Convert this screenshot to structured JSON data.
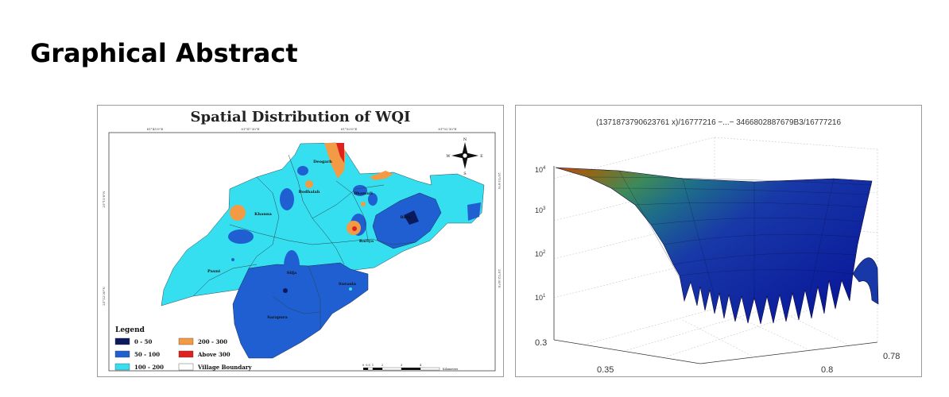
{
  "page": {
    "heading": "Graphical Abstract"
  },
  "map": {
    "title": "Spatial Distribution of WQI",
    "top_ticks": [
      "81°45'0\"E",
      "81°47'30\"E",
      "81°50'0\"E",
      "81°52'30\"E"
    ],
    "left_ticks": [
      "25°15'0\"N",
      "25°12'30\"N"
    ],
    "right_ticks": [
      "25°15'0\"N",
      "25°12'30\"N"
    ],
    "villages": [
      "Deogarh",
      "Bodhalah",
      "Bhamuli",
      "Bara",
      "Khanna",
      "Rariya",
      "Pauni",
      "Silja",
      "Suraula",
      "Sarapura"
    ],
    "north_arrow": {
      "n": "N",
      "s": "S",
      "e": "E",
      "w": "W"
    },
    "legend": {
      "title": "Legend",
      "items": [
        {
          "label": "0 - 50",
          "color": "#0a1a5e"
        },
        {
          "label": "50 - 100",
          "color": "#1f5fd1"
        },
        {
          "label": "100 - 200",
          "color": "#35dff0"
        },
        {
          "label": "200 - 300",
          "color": "#f39a44"
        },
        {
          "label": "Above 300",
          "color": "#e01f1f"
        },
        {
          "label": "Village Boundary",
          "color": "#ffffff"
        }
      ]
    },
    "scale_bar": {
      "ticks": [
        "0",
        "0.5",
        "1",
        "2",
        "3",
        "4"
      ],
      "unit": "Kilometers"
    }
  },
  "surface": {
    "title": "(1371873790623761 x)/16777216 −...− 3466802887679B3/16777216",
    "z_ticks": [
      {
        "base": "10",
        "exp": "4"
      },
      {
        "base": "10",
        "exp": "3"
      },
      {
        "base": "10",
        "exp": "2"
      },
      {
        "base": "10",
        "exp": "1"
      }
    ],
    "x_ticks": [
      "0.3",
      "0.35"
    ],
    "y_ticks": [
      "0.8",
      "0.78"
    ]
  }
}
